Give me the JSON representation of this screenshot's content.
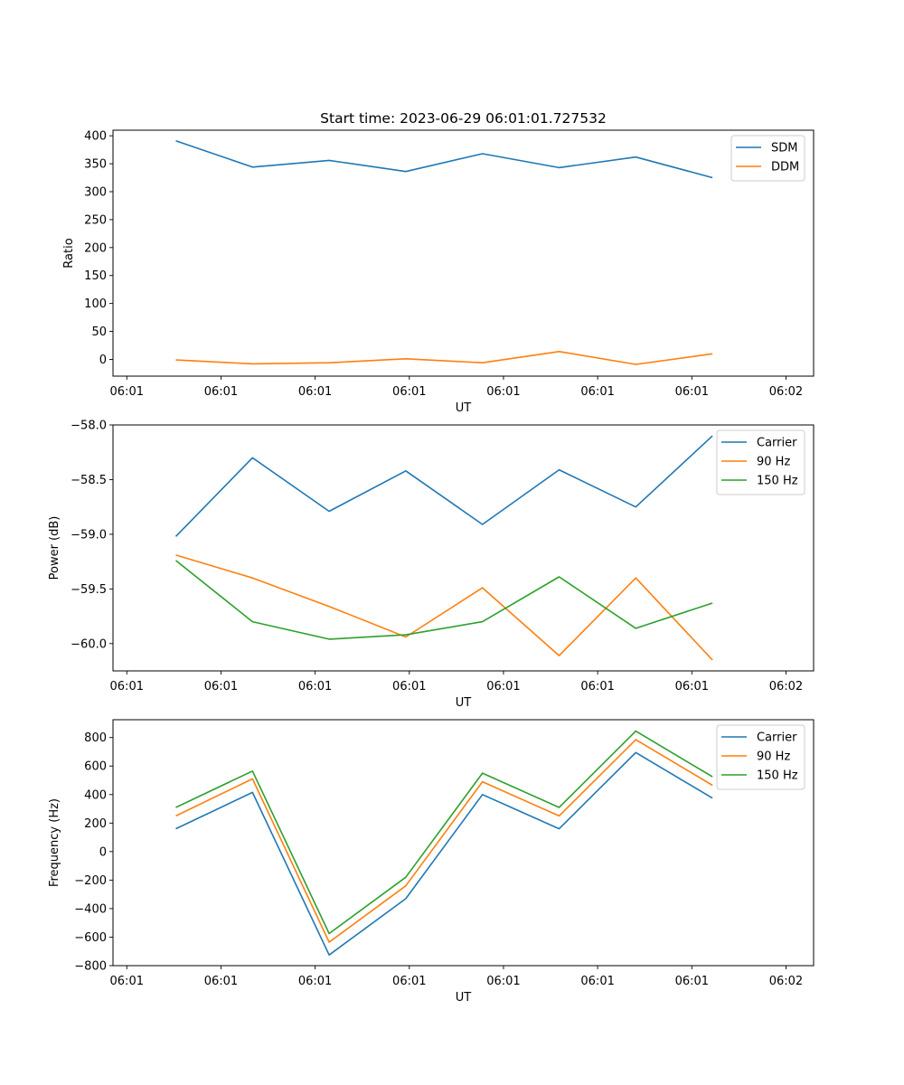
{
  "figure": {
    "title": "Start time: 2023-06-29 06:01:01.727532"
  },
  "chart_data": [
    {
      "type": "line",
      "title": "Start time: 2023-06-29 06:01:01.727532",
      "xlabel": "UT",
      "ylabel": "Ratio",
      "x_tick_labels": [
        "06:01",
        "06:01",
        "06:01",
        "06:01",
        "06:01",
        "06:01",
        "06:01",
        "06:02"
      ],
      "x": [
        1,
        2,
        3,
        4,
        5,
        6,
        7,
        8
      ],
      "xlim": [
        0.18,
        9.32
      ],
      "ylim": [
        -30,
        410
      ],
      "yticks": [
        0,
        50,
        100,
        150,
        200,
        250,
        300,
        350,
        400
      ],
      "grid": false,
      "legend": "top-right",
      "series": [
        {
          "name": "SDM",
          "color": "#1f77b4",
          "values": [
            391,
            344,
            356,
            336,
            368,
            343,
            362,
            325
          ]
        },
        {
          "name": "DDM",
          "color": "#ff7f0e",
          "values": [
            -1,
            -8,
            -6,
            1,
            -6,
            14,
            -9,
            10
          ]
        }
      ]
    },
    {
      "type": "line",
      "xlabel": "UT",
      "ylabel": "Power (dB)",
      "x_tick_labels": [
        "06:01",
        "06:01",
        "06:01",
        "06:01",
        "06:01",
        "06:01",
        "06:01",
        "06:02"
      ],
      "x": [
        1,
        2,
        3,
        4,
        5,
        6,
        7,
        8
      ],
      "xlim": [
        0.18,
        9.32
      ],
      "ylim": [
        -60.25,
        -58.0
      ],
      "yticks": [
        -60.0,
        -59.5,
        -59.0,
        -58.5,
        -58.0
      ],
      "ytick_labels": [
        "−60.0",
        "−59.5",
        "−59.0",
        "−58.5",
        "−58.0"
      ],
      "grid": false,
      "legend": "top-right",
      "series": [
        {
          "name": "Carrier",
          "color": "#1f77b4",
          "values": [
            -59.02,
            -58.3,
            -58.79,
            -58.42,
            -58.91,
            -58.41,
            -58.75,
            -58.1
          ]
        },
        {
          "name": "90 Hz",
          "color": "#ff7f0e",
          "values": [
            -59.19,
            -59.4,
            -59.66,
            -59.94,
            -59.49,
            -60.11,
            -59.4,
            -60.15
          ]
        },
        {
          "name": "150 Hz",
          "color": "#2ca02c",
          "values": [
            -59.24,
            -59.8,
            -59.96,
            -59.92,
            -59.8,
            -59.39,
            -59.86,
            -59.63
          ]
        }
      ]
    },
    {
      "type": "line",
      "xlabel": "UT",
      "ylabel": "Frequency (Hz)",
      "x_tick_labels": [
        "06:01",
        "06:01",
        "06:01",
        "06:01",
        "06:01",
        "06:01",
        "06:01",
        "06:02"
      ],
      "x": [
        1,
        2,
        3,
        4,
        5,
        6,
        7,
        8
      ],
      "xlim": [
        0.18,
        9.32
      ],
      "ylim": [
        -800,
        925
      ],
      "yticks": [
        -800,
        -600,
        -400,
        -200,
        0,
        200,
        400,
        600,
        800
      ],
      "ytick_labels": [
        "−800",
        "−600",
        "−400",
        "−200",
        "0",
        "200",
        "400",
        "600",
        "800"
      ],
      "grid": false,
      "legend": "top-right",
      "series": [
        {
          "name": "Carrier",
          "color": "#1f77b4",
          "values": [
            160,
            415,
            -725,
            -330,
            400,
            160,
            695,
            375
          ]
        },
        {
          "name": "90 Hz",
          "color": "#ff7f0e",
          "values": [
            250,
            510,
            -635,
            -240,
            490,
            250,
            785,
            465
          ]
        },
        {
          "name": "150 Hz",
          "color": "#2ca02c",
          "values": [
            310,
            565,
            -575,
            -180,
            550,
            310,
            845,
            525
          ]
        }
      ]
    }
  ]
}
